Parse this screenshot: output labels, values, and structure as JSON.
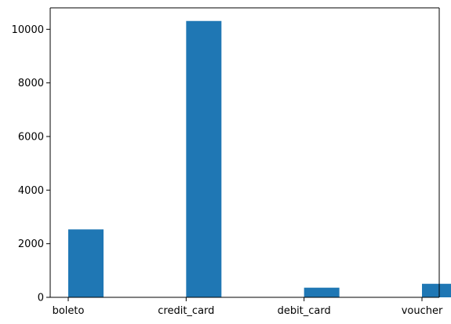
{
  "chart_data": {
    "type": "bar",
    "categories": [
      "boleto",
      "credit_card",
      "debit_card",
      "voucher"
    ],
    "values": [
      2535,
      10310,
      360,
      505
    ],
    "title": "",
    "xlabel": "",
    "ylabel": "",
    "ylim": [
      0,
      10800
    ],
    "yticks": [
      0,
      2000,
      4000,
      6000,
      8000,
      10000
    ],
    "ytick_labels": [
      "0",
      "2000",
      "4000",
      "6000",
      "8000",
      "10000"
    ],
    "bar_color": "#1f77b4",
    "grid": false,
    "legend": "none"
  }
}
